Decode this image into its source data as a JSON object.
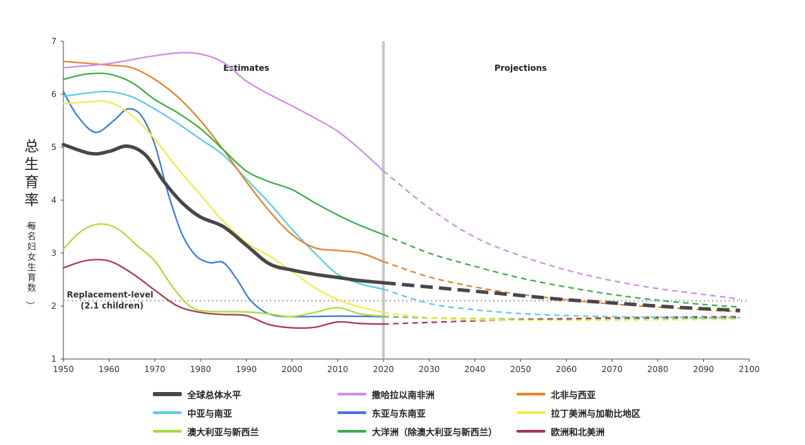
{
  "chart_data": {
    "type": "line",
    "title": "",
    "ylabel": "总生育率",
    "ylabel_sub": "（每名妇女生育数）",
    "xlim": [
      1950,
      2100
    ],
    "ylim": [
      1,
      7
    ],
    "x_ticks": [
      1950,
      1960,
      1970,
      1980,
      1990,
      2000,
      2010,
      2020,
      2030,
      2040,
      2050,
      2060,
      2070,
      2080,
      2090,
      2100
    ],
    "y_ticks": [
      1,
      2,
      3,
      4,
      5,
      6,
      7
    ],
    "divider_year": 2020,
    "sections": {
      "estimates": "Estimates",
      "projections": "Projections"
    },
    "replacement": {
      "value": 2.1,
      "label1": "Replacement-level",
      "label2": "(2.1 children)"
    },
    "series": [
      {
        "name": "全球总体水平",
        "color": "#4a4648",
        "width": 5,
        "estimates": [
          [
            1950,
            5.05
          ],
          [
            1956,
            4.88
          ],
          [
            1960,
            4.92
          ],
          [
            1964,
            5.02
          ],
          [
            1968,
            4.85
          ],
          [
            1972,
            4.35
          ],
          [
            1976,
            3.95
          ],
          [
            1980,
            3.68
          ],
          [
            1985,
            3.5
          ],
          [
            1990,
            3.15
          ],
          [
            1995,
            2.8
          ],
          [
            2000,
            2.68
          ],
          [
            2005,
            2.6
          ],
          [
            2010,
            2.54
          ],
          [
            2015,
            2.48
          ],
          [
            2020,
            2.44
          ]
        ],
        "projections": [
          [
            2020,
            2.44
          ],
          [
            2030,
            2.36
          ],
          [
            2040,
            2.28
          ],
          [
            2050,
            2.2
          ],
          [
            2060,
            2.12
          ],
          [
            2070,
            2.06
          ],
          [
            2080,
            2.0
          ],
          [
            2090,
            1.95
          ],
          [
            2098,
            1.92
          ]
        ]
      },
      {
        "name": "撒哈拉以南非洲",
        "color": "#cf8fe6",
        "width": 2.2,
        "estimates": [
          [
            1950,
            6.5
          ],
          [
            1960,
            6.58
          ],
          [
            1968,
            6.7
          ],
          [
            1975,
            6.78
          ],
          [
            1980,
            6.76
          ],
          [
            1985,
            6.6
          ],
          [
            1990,
            6.25
          ],
          [
            1995,
            6.0
          ],
          [
            2000,
            5.78
          ],
          [
            2005,
            5.55
          ],
          [
            2010,
            5.3
          ],
          [
            2015,
            4.95
          ],
          [
            2020,
            4.55
          ]
        ],
        "projections": [
          [
            2020,
            4.55
          ],
          [
            2030,
            3.85
          ],
          [
            2040,
            3.3
          ],
          [
            2050,
            2.95
          ],
          [
            2060,
            2.68
          ],
          [
            2070,
            2.48
          ],
          [
            2080,
            2.33
          ],
          [
            2090,
            2.22
          ],
          [
            2098,
            2.13
          ]
        ]
      },
      {
        "name": "北非与西亚",
        "color": "#e5822d",
        "width": 2.2,
        "estimates": [
          [
            1950,
            6.62
          ],
          [
            1960,
            6.55
          ],
          [
            1965,
            6.5
          ],
          [
            1970,
            6.28
          ],
          [
            1975,
            5.95
          ],
          [
            1980,
            5.5
          ],
          [
            1985,
            4.95
          ],
          [
            1990,
            4.35
          ],
          [
            1995,
            3.8
          ],
          [
            2000,
            3.35
          ],
          [
            2005,
            3.1
          ],
          [
            2010,
            3.05
          ],
          [
            2015,
            3.0
          ],
          [
            2020,
            2.84
          ]
        ],
        "projections": [
          [
            2020,
            2.84
          ],
          [
            2030,
            2.55
          ],
          [
            2040,
            2.36
          ],
          [
            2050,
            2.22
          ],
          [
            2060,
            2.12
          ],
          [
            2070,
            2.04
          ],
          [
            2080,
            1.98
          ],
          [
            2090,
            1.93
          ],
          [
            2098,
            1.89
          ]
        ]
      },
      {
        "name": "中亚与南亚",
        "color": "#5fcbe4",
        "width": 2.2,
        "estimates": [
          [
            1950,
            5.96
          ],
          [
            1955,
            6.02
          ],
          [
            1960,
            6.05
          ],
          [
            1965,
            5.95
          ],
          [
            1970,
            5.72
          ],
          [
            1975,
            5.45
          ],
          [
            1980,
            5.15
          ],
          [
            1985,
            4.85
          ],
          [
            1990,
            4.4
          ],
          [
            1995,
            3.95
          ],
          [
            2000,
            3.45
          ],
          [
            2005,
            3.0
          ],
          [
            2010,
            2.6
          ],
          [
            2015,
            2.42
          ],
          [
            2020,
            2.32
          ]
        ],
        "projections": [
          [
            2020,
            2.32
          ],
          [
            2030,
            2.05
          ],
          [
            2040,
            1.93
          ],
          [
            2050,
            1.86
          ],
          [
            2060,
            1.82
          ],
          [
            2070,
            1.8
          ],
          [
            2080,
            1.79
          ],
          [
            2090,
            1.78
          ],
          [
            2098,
            1.78
          ]
        ]
      },
      {
        "name": "东亚与东南亚",
        "color": "#3d7bd8",
        "width": 2.2,
        "estimates": [
          [
            1950,
            6.05
          ],
          [
            1953,
            5.6
          ],
          [
            1957,
            5.28
          ],
          [
            1961,
            5.5
          ],
          [
            1964,
            5.72
          ],
          [
            1967,
            5.6
          ],
          [
            1970,
            5.05
          ],
          [
            1973,
            4.1
          ],
          [
            1976,
            3.35
          ],
          [
            1979,
            2.95
          ],
          [
            1982,
            2.82
          ],
          [
            1985,
            2.82
          ],
          [
            1988,
            2.5
          ],
          [
            1991,
            2.1
          ],
          [
            1995,
            1.85
          ],
          [
            2000,
            1.8
          ],
          [
            2010,
            1.81
          ],
          [
            2020,
            1.8
          ]
        ],
        "projections": [
          [
            2020,
            1.8
          ],
          [
            2040,
            1.76
          ],
          [
            2060,
            1.76
          ],
          [
            2080,
            1.77
          ],
          [
            2098,
            1.78
          ]
        ]
      },
      {
        "name": "拉丁美洲与加勒比地区",
        "color": "#f4e94f",
        "width": 2.2,
        "estimates": [
          [
            1950,
            5.82
          ],
          [
            1955,
            5.85
          ],
          [
            1960,
            5.85
          ],
          [
            1965,
            5.6
          ],
          [
            1970,
            5.15
          ],
          [
            1975,
            4.6
          ],
          [
            1980,
            4.1
          ],
          [
            1985,
            3.6
          ],
          [
            1990,
            3.2
          ],
          [
            1995,
            2.95
          ],
          [
            2000,
            2.65
          ],
          [
            2005,
            2.35
          ],
          [
            2010,
            2.12
          ],
          [
            2015,
            1.98
          ],
          [
            2020,
            1.88
          ]
        ],
        "projections": [
          [
            2020,
            1.88
          ],
          [
            2030,
            1.78
          ],
          [
            2040,
            1.74
          ],
          [
            2060,
            1.73
          ],
          [
            2080,
            1.74
          ],
          [
            2098,
            1.75
          ]
        ]
      },
      {
        "name": "澳大利亚与新西兰",
        "color": "#a6de3c",
        "width": 2.2,
        "estimates": [
          [
            1950,
            3.08
          ],
          [
            1954,
            3.42
          ],
          [
            1958,
            3.55
          ],
          [
            1962,
            3.45
          ],
          [
            1966,
            3.15
          ],
          [
            1970,
            2.85
          ],
          [
            1974,
            2.35
          ],
          [
            1978,
            1.98
          ],
          [
            1982,
            1.9
          ],
          [
            1990,
            1.89
          ],
          [
            1995,
            1.85
          ],
          [
            2000,
            1.8
          ],
          [
            2005,
            1.88
          ],
          [
            2010,
            1.97
          ],
          [
            2015,
            1.85
          ],
          [
            2020,
            1.81
          ]
        ],
        "projections": [
          [
            2020,
            1.81
          ],
          [
            2040,
            1.76
          ],
          [
            2060,
            1.75
          ],
          [
            2080,
            1.75
          ],
          [
            2098,
            1.76
          ]
        ]
      },
      {
        "name": "大洋洲（除澳大利亚与新西兰）",
        "color": "#3dae4a",
        "width": 2.2,
        "estimates": [
          [
            1950,
            6.28
          ],
          [
            1955,
            6.38
          ],
          [
            1960,
            6.38
          ],
          [
            1965,
            6.22
          ],
          [
            1970,
            5.9
          ],
          [
            1975,
            5.65
          ],
          [
            1980,
            5.35
          ],
          [
            1985,
            4.95
          ],
          [
            1990,
            4.55
          ],
          [
            1995,
            4.35
          ],
          [
            2000,
            4.2
          ],
          [
            2005,
            3.95
          ],
          [
            2010,
            3.72
          ],
          [
            2015,
            3.52
          ],
          [
            2020,
            3.35
          ]
        ],
        "projections": [
          [
            2020,
            3.35
          ],
          [
            2030,
            3.0
          ],
          [
            2040,
            2.75
          ],
          [
            2050,
            2.53
          ],
          [
            2060,
            2.36
          ],
          [
            2070,
            2.22
          ],
          [
            2080,
            2.11
          ],
          [
            2090,
            2.03
          ],
          [
            2098,
            1.98
          ]
        ]
      },
      {
        "name": "欧洲和北美洲",
        "color": "#a63a50",
        "width": 2.2,
        "estimates": [
          [
            1950,
            2.72
          ],
          [
            1955,
            2.86
          ],
          [
            1960,
            2.85
          ],
          [
            1965,
            2.62
          ],
          [
            1970,
            2.3
          ],
          [
            1975,
            2.0
          ],
          [
            1980,
            1.88
          ],
          [
            1985,
            1.84
          ],
          [
            1990,
            1.82
          ],
          [
            1995,
            1.65
          ],
          [
            2000,
            1.59
          ],
          [
            2005,
            1.6
          ],
          [
            2010,
            1.7
          ],
          [
            2015,
            1.67
          ],
          [
            2020,
            1.66
          ]
        ],
        "projections": [
          [
            2020,
            1.66
          ],
          [
            2040,
            1.72
          ],
          [
            2060,
            1.76
          ],
          [
            2080,
            1.79
          ],
          [
            2098,
            1.8
          ]
        ]
      }
    ]
  }
}
